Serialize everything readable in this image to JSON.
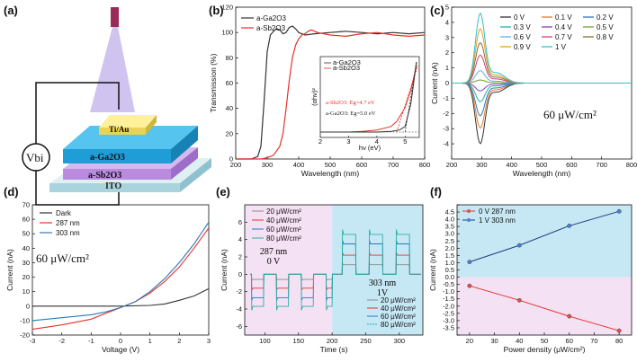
{
  "figure_labels": [
    "(a)",
    "(b)",
    "(c)",
    "(d)",
    "(e)",
    "(f)"
  ],
  "colors": {
    "black": "#333333",
    "red": "#e8312a",
    "blue": "#2a7ab9",
    "green": "#2bb0a0",
    "navy": "#1f3d7a",
    "pink_bg": "#f4e1f4",
    "blue_bg": "#c6e8f5",
    "device_top": "#1fa6dc",
    "device_mid": "#b07ad6",
    "device_sub": "#bfe3ea"
  },
  "device": {
    "electrode": "Ti/Au",
    "layer1": "a-Ga2O3",
    "layer2": "a-Sb2O3",
    "substrate": "ITO",
    "vbi": "Vbi"
  },
  "chart_data": [
    {
      "id": "b",
      "type": "line",
      "title": "",
      "xlabel": "Wavelength (nm)",
      "ylabel": "Transmission (%)",
      "xlim": [
        200,
        800
      ],
      "ylim": [
        0,
        120
      ],
      "xticks": [
        200,
        300,
        400,
        500,
        600,
        700,
        800
      ],
      "yticks": [
        0,
        20,
        40,
        60,
        80,
        100,
        120
      ],
      "legend": [
        "a-Ga2O3",
        "a-Sb2O3"
      ],
      "series": [
        {
          "name": "a-Ga2O3",
          "color": "black",
          "x": [
            200,
            250,
            270,
            280,
            290,
            300,
            310,
            320,
            330,
            340,
            350,
            360,
            370,
            380,
            390,
            400,
            420,
            450,
            500,
            550,
            600,
            650,
            700,
            750,
            800
          ],
          "y": [
            0,
            0,
            2,
            10,
            45,
            85,
            98,
            101,
            103,
            102,
            99,
            100,
            104,
            105,
            103,
            100,
            98,
            99,
            100,
            101,
            100,
            99,
            100,
            99,
            100
          ]
        },
        {
          "name": "a-Sb2O3",
          "color": "red",
          "x": [
            200,
            280,
            300,
            320,
            340,
            350,
            360,
            370,
            380,
            390,
            400,
            410,
            420,
            430,
            440,
            460,
            480,
            500,
            550,
            600,
            650,
            700,
            750,
            800
          ],
          "y": [
            0,
            0,
            1,
            3,
            10,
            20,
            40,
            62,
            80,
            90,
            95,
            98,
            99,
            101,
            102,
            100,
            99,
            98,
            97,
            99,
            100,
            98,
            97,
            98
          ]
        }
      ],
      "inset": {
        "xlabel": "hν (eV)",
        "ylabel": "(αhν)²",
        "xlim": [
          2,
          5.5
        ],
        "xticks": [
          2,
          3,
          4,
          5
        ],
        "legend": [
          "a-Ga2O3",
          "a-Sb2O3"
        ],
        "annotations": [
          "a-Sb2O3: Eg=4.7 eV",
          "a-Ga2O3: Eg=5.0 eV"
        ],
        "series": [
          {
            "name": "a-Sb2O3",
            "color": "red",
            "x": [
              2,
              3,
              3.5,
              4,
              4.5,
              4.7,
              5,
              5.2,
              5.4
            ],
            "y": [
              0,
              0,
              0.01,
              0.03,
              0.08,
              0.15,
              0.35,
              0.6,
              0.95
            ]
          },
          {
            "name": "a-Ga2O3",
            "color": "black",
            "x": [
              2,
              3,
              4,
              4.5,
              4.8,
              5,
              5.2,
              5.4
            ],
            "y": [
              0,
              0,
              0,
              0.01,
              0.03,
              0.08,
              0.4,
              1.0
            ]
          }
        ]
      }
    },
    {
      "id": "c",
      "type": "line",
      "xlabel": "Wavelength (nm)",
      "ylabel": "Current (nA)",
      "xlim": [
        200,
        800
      ],
      "ylim": [
        -5,
        5
      ],
      "xticks": [
        200,
        300,
        400,
        500,
        600,
        700,
        800
      ],
      "yticks": [
        -4,
        -3,
        -2,
        -1,
        0,
        1,
        2,
        3,
        4,
        5
      ],
      "annotation": "60 μW/cm²",
      "legend": [
        "0 V",
        "0.1 V",
        "0.2 V",
        "0.3 V",
        "0.4 V",
        "0.5 V",
        "0.6 V",
        "0.7 V",
        "0.8 V",
        "0.9 V",
        "1 V"
      ],
      "legend_colors": [
        "#333333",
        "#e8782a",
        "#2a7ab9",
        "#2bb0a0",
        "#8a3fb5",
        "#7a9e2a",
        "#5bb5e8",
        "#d43f7a",
        "#8a6a3a",
        "#e0a020",
        "#30c0c8"
      ],
      "peak_wavelength": 295,
      "peaks": [
        -3.9,
        -2.9,
        -2.1,
        -1.2,
        -0.5,
        0.2,
        0.8,
        1.8,
        2.6,
        3.5,
        4.5
      ]
    },
    {
      "id": "d",
      "type": "line",
      "xlabel": "Voltage (V)",
      "ylabel": "Current (nA)",
      "xlim": [
        -3,
        3
      ],
      "ylim": [
        -20,
        70
      ],
      "xticks": [
        -3,
        -2,
        -1,
        0,
        1,
        2,
        3
      ],
      "yticks": [
        -20,
        -10,
        0,
        10,
        20,
        30,
        40,
        50,
        60,
        70
      ],
      "annotation": "60 μW/cm²",
      "legend": [
        "Dark",
        "287 nm",
        "303 nm"
      ],
      "series": [
        {
          "name": "Dark",
          "color": "black",
          "x": [
            -3,
            -2,
            -1,
            0,
            1,
            1.5,
            2,
            2.5,
            3
          ],
          "y": [
            0,
            0,
            0,
            0,
            0.5,
            1.5,
            4,
            7,
            12
          ]
        },
        {
          "name": "287 nm",
          "color": "red",
          "x": [
            -3,
            -2,
            -1,
            -0.5,
            0,
            0.5,
            1,
            1.5,
            2,
            2.5,
            3
          ],
          "y": [
            -16,
            -13,
            -9,
            -5,
            -1,
            3,
            9,
            17,
            27,
            40,
            54
          ]
        },
        {
          "name": "303 nm",
          "color": "blue",
          "x": [
            -3,
            -2,
            -1,
            -0.5,
            0,
            0.5,
            1,
            1.5,
            2,
            2.5,
            3
          ],
          "y": [
            -10,
            -8,
            -6,
            -4,
            -1,
            3,
            10,
            19,
            30,
            43,
            58
          ]
        }
      ]
    },
    {
      "id": "e",
      "type": "line",
      "xlabel": "Time (s)",
      "ylabel": "Current (nA)",
      "xlim": [
        70,
        335
      ],
      "ylim": [
        -7,
        8
      ],
      "xticks": [
        100,
        150,
        200,
        250,
        300
      ],
      "yticks": [
        -6,
        -4,
        -2,
        0,
        2,
        4,
        6
      ],
      "legend_left": [
        "20 μW/cm²",
        "40 μW/cm²",
        "60 μW/cm²",
        "80 μW/cm²"
      ],
      "label_left": [
        "287 nm",
        "0 V"
      ],
      "legend_right": [
        "20 μW/cm²",
        "40 μW/cm²",
        "60 μW/cm²",
        "80 μW/cm²"
      ],
      "label_right": [
        "303 nm",
        "1V"
      ],
      "divider_time": 200,
      "on_periods_left": [
        [
          80,
          98
        ],
        [
          117,
          135
        ],
        [
          154,
          172
        ],
        [
          191,
          200
        ]
      ],
      "on_periods_right": [
        [
          215,
          235
        ],
        [
          255,
          275
        ],
        [
          295,
          315
        ]
      ],
      "levels_left": [
        -0.6,
        -1.6,
        -2.7,
        -3.7
      ],
      "levels_right": [
        1.1,
        2.2,
        3.5,
        4.6
      ],
      "series_colors": [
        "#8a8a8a",
        "#e8312a",
        "#2a7ab9",
        "#2bb0a0"
      ]
    },
    {
      "id": "f",
      "type": "line",
      "xlabel": "Power density (μW/cm²)",
      "ylabel": "Current (nA)",
      "xlim": [
        15,
        85
      ],
      "ylim": [
        -4,
        5
      ],
      "xticks": [
        20,
        30,
        40,
        50,
        60,
        70,
        80
      ],
      "yticks": [
        -4,
        -3.5,
        -3,
        -2.5,
        -2,
        -1.5,
        -1,
        -0.5,
        0,
        0.5,
        1,
        1.5,
        2,
        2.5,
        3,
        3.5,
        4,
        4.5,
        5
      ],
      "ytick_labels": [
        "",
        "-3.5",
        "-3.0",
        "-2.5",
        "-2.0",
        "-1.5",
        "-1.0",
        "-0.5",
        "0.0",
        "0.5",
        "1.0",
        "1.5",
        "2.0",
        "2.5",
        "3.0",
        "3.5",
        "4.0",
        "4.5",
        ""
      ],
      "legend": [
        "0 V  287 nm",
        "1 V  303 nm"
      ],
      "series": [
        {
          "name": "0 V  287 nm",
          "color": "red",
          "x": [
            20,
            40,
            60,
            80
          ],
          "y": [
            -0.6,
            -1.6,
            -2.7,
            -3.7
          ]
        },
        {
          "name": "1 V  303 nm",
          "color": "navy",
          "x": [
            20,
            40,
            60,
            80
          ],
          "y": [
            1.05,
            2.2,
            3.55,
            4.55
          ]
        }
      ]
    }
  ]
}
